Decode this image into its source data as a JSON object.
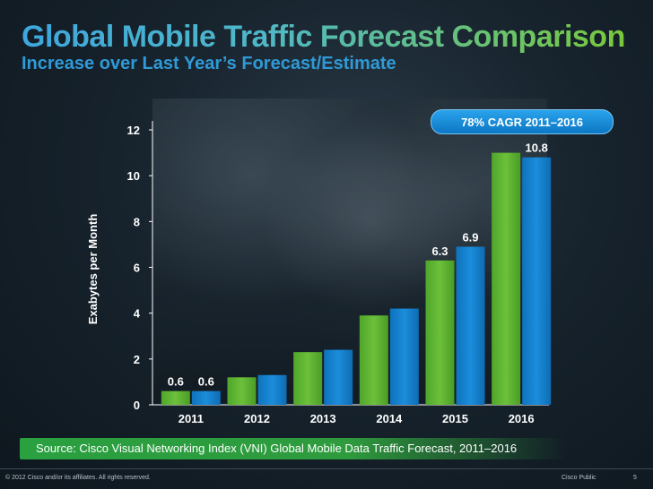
{
  "slide": {
    "title": "Global Mobile Traffic Forecast Comparison",
    "subtitle": "Increase over Last Year’s Forecast/Estimate",
    "callout": "78% CAGR 2011–2016",
    "source": "Source: Cisco Visual Networking Index (VNI) Global Mobile Data Traffic Forecast, 2011–2016",
    "copyright": "© 2012 Cisco and/or its affiliates. All rights reserved.",
    "classification": "Cisco Public",
    "page_number": "5"
  },
  "colors": {
    "series_green": "#6cc03a",
    "series_blue": "#1b8ddb",
    "axis": "#ffffff"
  },
  "chart_data": {
    "type": "bar",
    "categories": [
      "2011",
      "2012",
      "2013",
      "2014",
      "2015",
      "2016"
    ],
    "series": [
      {
        "values": [
          0.6,
          1.2,
          2.3,
          3.9,
          6.3,
          11.0
        ]
      },
      {
        "values": [
          0.6,
          1.3,
          2.4,
          4.2,
          6.9,
          10.8
        ]
      }
    ],
    "data_labels": [
      {
        "category": "2011",
        "series": 0,
        "text": "0.6"
      },
      {
        "category": "2011",
        "series": 1,
        "text": "0.6"
      },
      {
        "category": "2015",
        "series": 0,
        "text": "6.3"
      },
      {
        "category": "2015",
        "series": 1,
        "text": "6.9"
      },
      {
        "category": "2016",
        "series": 1,
        "text": "10.8"
      }
    ],
    "ylabel": "Exabytes per Month",
    "yticks": [
      0,
      2,
      4,
      6,
      8,
      10,
      12
    ],
    "ylim": [
      0,
      12
    ],
    "grid": false,
    "legend": "none"
  }
}
